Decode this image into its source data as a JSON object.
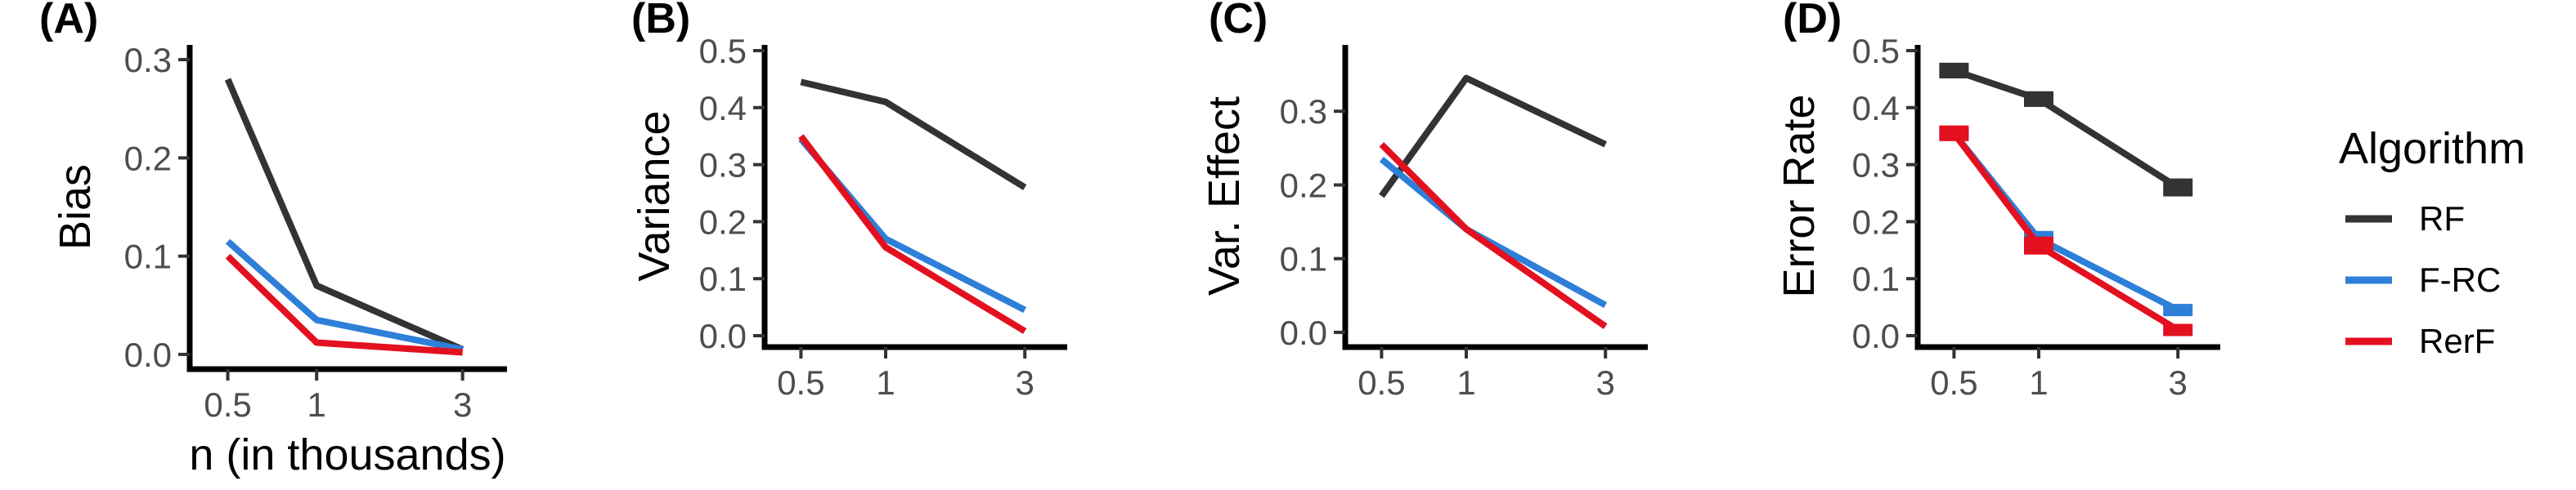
{
  "chart_data": [
    {
      "type": "line",
      "panel": "(A)",
      "xlabel": "n (in thousands)",
      "ylabel": "Bias",
      "x": [
        0.5,
        1,
        3
      ],
      "x_tick_labels": [
        "0.5",
        "1",
        "3"
      ],
      "ylim": [
        -0.015,
        0.315
      ],
      "y_ticks": [
        0.0,
        0.1,
        0.2,
        0.3
      ],
      "y_tick_labels": [
        "0.0",
        "0.1",
        "0.2",
        "0.3"
      ],
      "series": [
        {
          "name": "RF",
          "values": [
            0.28,
            0.07,
            0.005
          ]
        },
        {
          "name": "F-RC",
          "values": [
            0.115,
            0.035,
            0.005
          ]
        },
        {
          "name": "RerF",
          "values": [
            0.1,
            0.012,
            0.002
          ]
        }
      ]
    },
    {
      "type": "line",
      "panel": "(B)",
      "xlabel": "",
      "ylabel": "Variance",
      "x": [
        0.5,
        1,
        3
      ],
      "x_tick_labels": [
        "0.5",
        "1",
        "3"
      ],
      "ylim": [
        -0.02,
        0.51
      ],
      "y_ticks": [
        0.0,
        0.1,
        0.2,
        0.3,
        0.4,
        0.5
      ],
      "y_tick_labels": [
        "0.0",
        "0.1",
        "0.2",
        "0.3",
        "0.4",
        "0.5"
      ],
      "series": [
        {
          "name": "RF",
          "values": [
            0.445,
            0.41,
            0.26
          ]
        },
        {
          "name": "F-RC",
          "values": [
            0.345,
            0.17,
            0.045
          ]
        },
        {
          "name": "RerF",
          "values": [
            0.35,
            0.155,
            0.008
          ]
        }
      ]
    },
    {
      "type": "line",
      "panel": "(C)",
      "xlabel": "",
      "ylabel": "Var. Effect",
      "x": [
        0.5,
        1,
        3
      ],
      "x_tick_labels": [
        "0.5",
        "1",
        "3"
      ],
      "ylim": [
        -0.02,
        0.39
      ],
      "y_ticks": [
        0.0,
        0.1,
        0.2,
        0.3
      ],
      "y_tick_labels": [
        "0.0",
        "0.1",
        "0.2",
        "0.3"
      ],
      "series": [
        {
          "name": "RF",
          "values": [
            0.185,
            0.345,
            0.255
          ]
        },
        {
          "name": "F-RC",
          "values": [
            0.235,
            0.14,
            0.037
          ]
        },
        {
          "name": "RerF",
          "values": [
            0.255,
            0.14,
            0.008
          ]
        }
      ]
    },
    {
      "type": "line",
      "panel": "(D)",
      "xlabel": "",
      "ylabel": "Error Rate",
      "x": [
        0.5,
        1,
        3
      ],
      "x_tick_labels": [
        "0.5",
        "1",
        "3"
      ],
      "ylim": [
        -0.02,
        0.51
      ],
      "y_ticks": [
        0.0,
        0.1,
        0.2,
        0.3,
        0.4,
        0.5
      ],
      "y_tick_labels": [
        "0.0",
        "0.1",
        "0.2",
        "0.3",
        "0.4",
        "0.5"
      ],
      "error_bars": true,
      "series": [
        {
          "name": "RF",
          "values": [
            0.465,
            0.415,
            0.26
          ],
          "err": [
            0.008,
            0.008,
            0.01
          ]
        },
        {
          "name": "F-RC",
          "values": [
            0.355,
            0.17,
            0.045
          ],
          "err": [
            0.006,
            0.008,
            0.005
          ]
        },
        {
          "name": "RerF",
          "values": [
            0.355,
            0.158,
            0.01
          ],
          "err": [
            0.008,
            0.01,
            0.005
          ]
        }
      ]
    }
  ],
  "legend": {
    "title": "Algorithm",
    "entries": [
      {
        "name": "RF",
        "color": "#333333"
      },
      {
        "name": "F-RC",
        "color": "#2e7fd8"
      },
      {
        "name": "RerF",
        "color": "#e3101f"
      }
    ]
  }
}
